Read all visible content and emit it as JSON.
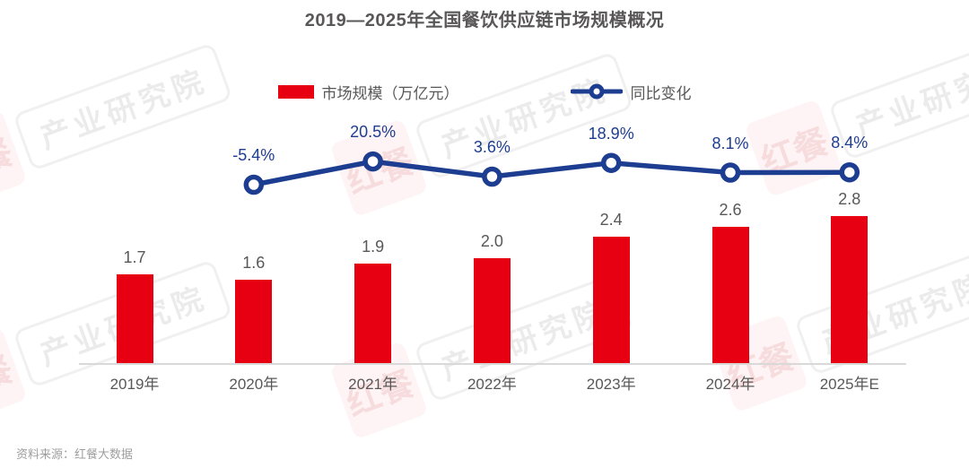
{
  "title": "2019—2025年全国餐饮供应链市场规模概况",
  "legend": {
    "bar_label": "市场规模（万亿元）",
    "line_label": "同比变化"
  },
  "source": "资料来源：红餐大数据",
  "watermark": {
    "logo": "红餐",
    "label": "产业研究院"
  },
  "colors": {
    "bar_red": "#E60012",
    "line_blue": "#1D3D91",
    "text_gray": "#595757",
    "axis_gray": "#D9D9D9",
    "source_gray": "#9E9E9E"
  },
  "chart_data": {
    "type": "bar",
    "combo": "bar+line",
    "title": "2019—2025年全国餐饮供应链市场规模概况",
    "categories": [
      "2019年",
      "2020年",
      "2021年",
      "2022年",
      "2023年",
      "2024年",
      "2025年E"
    ],
    "series": [
      {
        "name": "市场规模（万亿元）",
        "type": "bar",
        "unit": "万亿元",
        "values": [
          1.7,
          1.6,
          1.9,
          2.0,
          2.4,
          2.6,
          2.8
        ],
        "value_labels": [
          "1.7",
          "1.6",
          "1.9",
          "2.0",
          "2.4",
          "2.6",
          "2.8"
        ]
      },
      {
        "name": "同比变化",
        "type": "line",
        "unit": "%",
        "values": [
          null,
          -5.4,
          20.5,
          3.6,
          18.9,
          8.1,
          8.4
        ],
        "value_labels": [
          "",
          "-5.4%",
          "20.5%",
          "3.6%",
          "18.9%",
          "8.1%",
          "8.4%"
        ]
      }
    ],
    "xlabel": "",
    "ylabel": "",
    "grid": false,
    "legend_position": "top"
  }
}
